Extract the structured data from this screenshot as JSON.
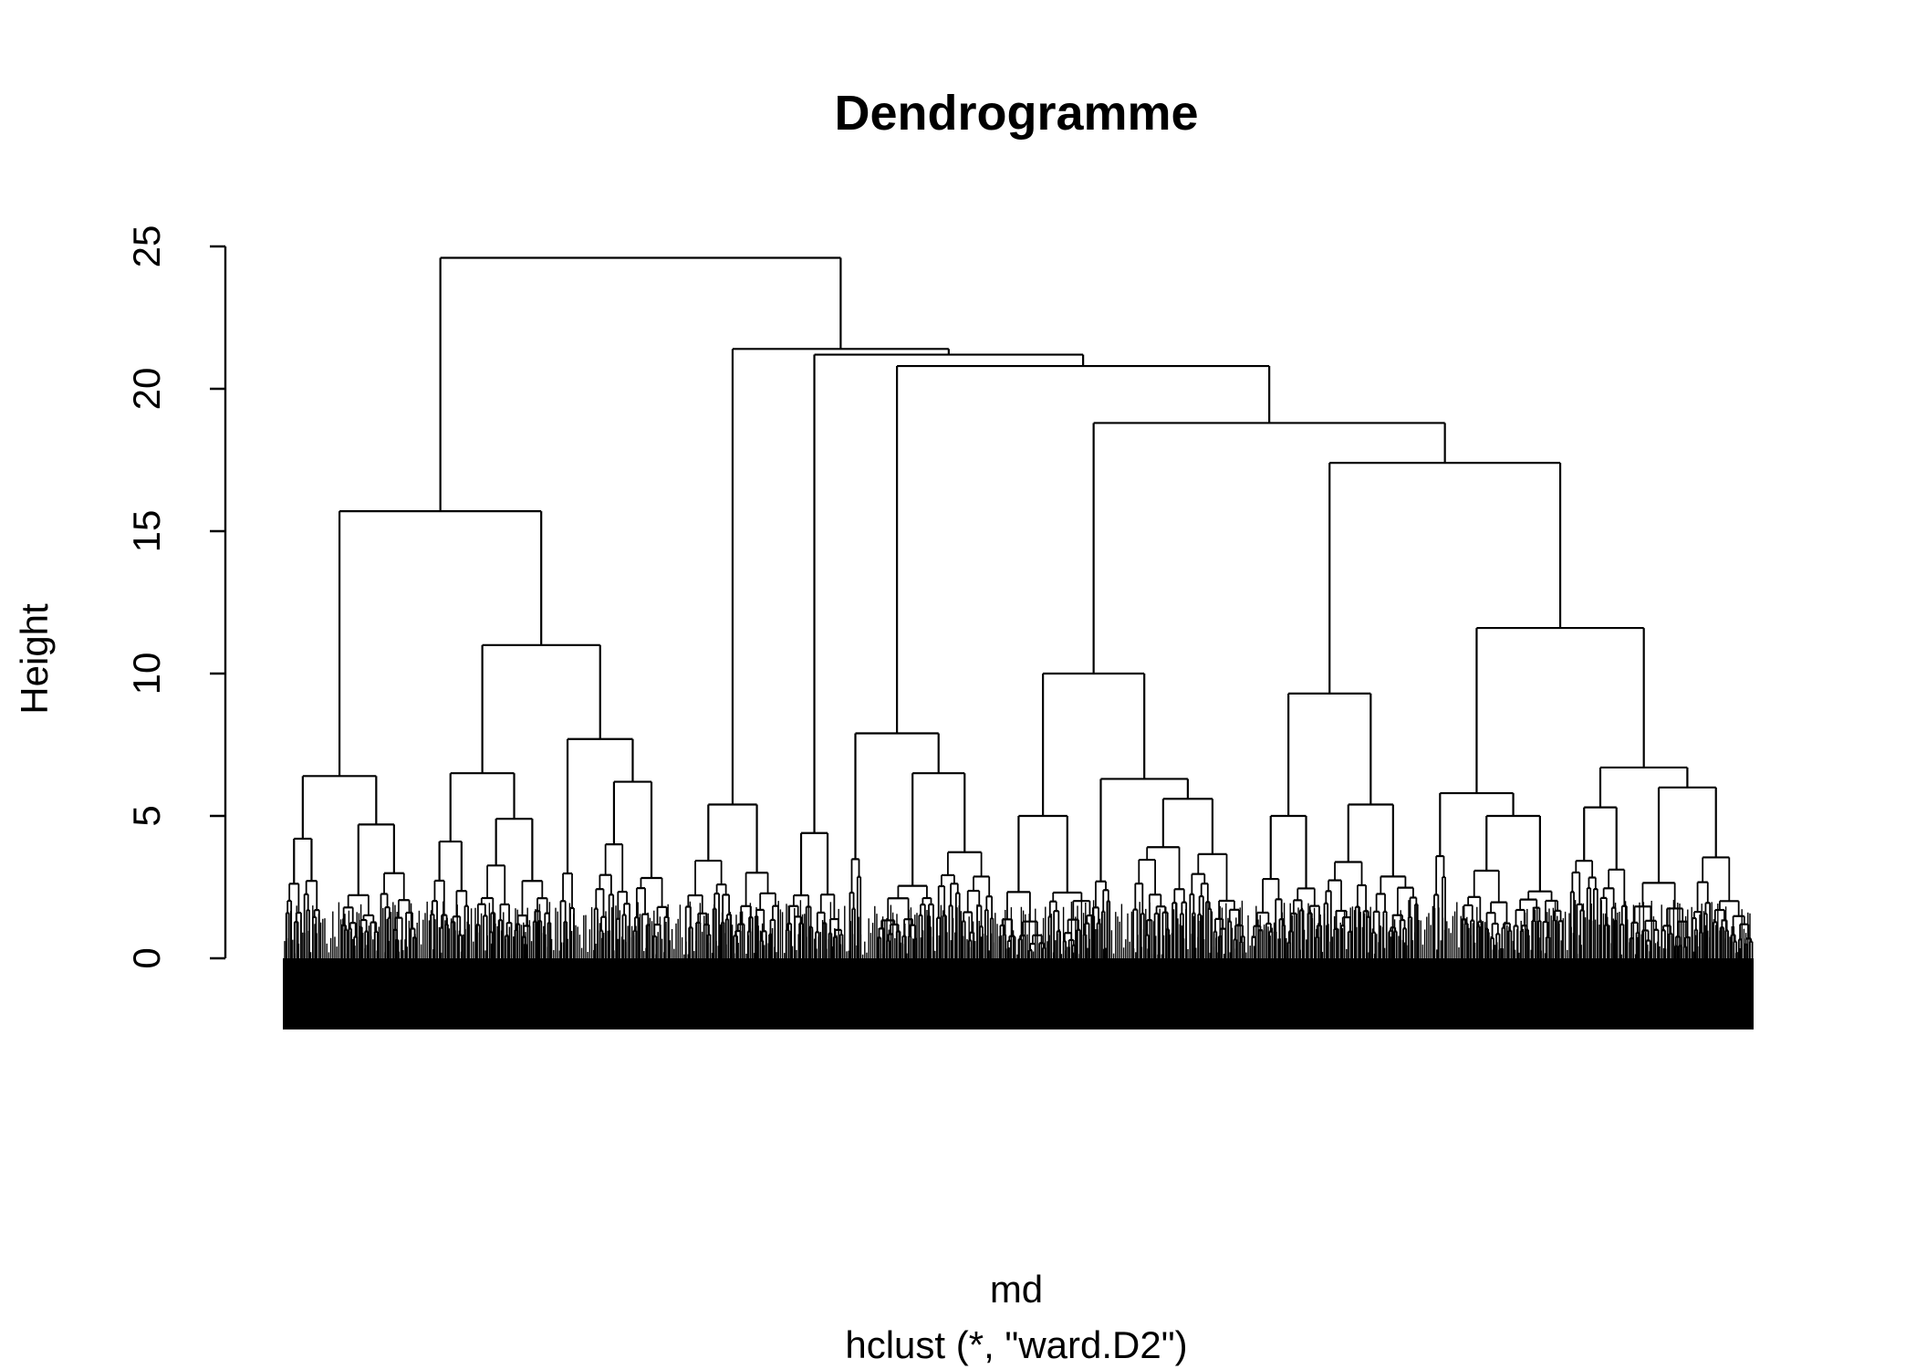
{
  "chart_data": {
    "type": "dendrogram",
    "title": "Dendrogramme",
    "xlabel": "md",
    "sub": "hclust (*, \"ward.D2\")",
    "ylabel": "Height",
    "ylim": [
      0,
      25
    ],
    "yticks": [
      0,
      5,
      10,
      15,
      20,
      25
    ],
    "ytick_labels": [
      "0",
      "5",
      "10",
      "15",
      "20",
      "25"
    ],
    "grid": false,
    "leaf_label_depth": 2.5,
    "top_merges": [
      {
        "id": "m_root",
        "height": 24.6,
        "children": [
          "m_a",
          "m_b"
        ]
      },
      {
        "id": "m_a",
        "height": 15.7,
        "children": [
          "m_a1",
          "m_a2"
        ]
      },
      {
        "id": "m_a1",
        "height": 6.4,
        "children": [
          "m_a1L",
          "m_a1R"
        ]
      },
      {
        "id": "m_a1L",
        "height": 4.2,
        "children": [
          "leaf",
          "leaf"
        ]
      },
      {
        "id": "m_a1R",
        "height": 4.7,
        "children": [
          "leaf",
          "leaf"
        ]
      },
      {
        "id": "m_a2",
        "height": 11.0,
        "children": [
          "m_a2L",
          "m_a2R"
        ]
      },
      {
        "id": "m_a2L",
        "height": 6.5,
        "children": [
          "m_a2La",
          "m_a2Lb"
        ]
      },
      {
        "id": "m_a2La",
        "height": 4.1,
        "children": [
          "leaf",
          "leaf"
        ]
      },
      {
        "id": "m_a2Lb",
        "height": 4.9,
        "children": [
          "leaf",
          "leaf"
        ]
      },
      {
        "id": "m_a2R",
        "height": 7.7,
        "children": [
          "leaf",
          "m_a2Rb"
        ]
      },
      {
        "id": "m_a2Rb",
        "height": 6.2,
        "children": [
          "leaf",
          "leaf"
        ]
      },
      {
        "id": "m_b",
        "height": 21.4,
        "children": [
          "m_b1",
          "m_b2"
        ]
      },
      {
        "id": "m_b1",
        "height": 5.4,
        "children": [
          "leaf",
          "leaf"
        ]
      },
      {
        "id": "m_b2",
        "height": 21.2,
        "children": [
          "m_b2a",
          "m_b2b"
        ]
      },
      {
        "id": "m_b2a",
        "height": 4.4,
        "children": [
          "leaf",
          "leaf"
        ]
      },
      {
        "id": "m_b2b",
        "height": 20.8,
        "children": [
          "m_c",
          "m_d"
        ]
      },
      {
        "id": "m_c",
        "height": 7.9,
        "children": [
          "leaf",
          "m_c2"
        ]
      },
      {
        "id": "m_c2",
        "height": 6.5,
        "children": [
          "leaf",
          "leaf"
        ]
      },
      {
        "id": "m_d",
        "height": 18.8,
        "children": [
          "m_d1",
          "m_d2"
        ]
      },
      {
        "id": "m_d1",
        "height": 10.0,
        "children": [
          "m_d1L",
          "m_d1R"
        ]
      },
      {
        "id": "m_d1L",
        "height": 5.0,
        "children": [
          "leaf",
          "leaf"
        ]
      },
      {
        "id": "m_d1R",
        "height": 6.3,
        "children": [
          "leaf",
          "m_d1Rb"
        ]
      },
      {
        "id": "m_d1Rb",
        "height": 5.6,
        "children": [
          "leaf",
          "leaf"
        ]
      },
      {
        "id": "m_d2",
        "height": 17.4,
        "children": [
          "m_e",
          "m_f"
        ]
      },
      {
        "id": "m_e",
        "height": 9.3,
        "children": [
          "m_e1",
          "m_e2"
        ]
      },
      {
        "id": "m_e1",
        "height": 5.0,
        "children": [
          "leaf",
          "leaf"
        ]
      },
      {
        "id": "m_e2",
        "height": 5.4,
        "children": [
          "leaf",
          "leaf"
        ]
      },
      {
        "id": "m_f",
        "height": 11.6,
        "children": [
          "m_f1",
          "m_f2"
        ]
      },
      {
        "id": "m_f1",
        "height": 5.8,
        "children": [
          "leaf",
          "m_f1b"
        ]
      },
      {
        "id": "m_f1b",
        "height": 5.0,
        "children": [
          "leaf",
          "leaf"
        ]
      },
      {
        "id": "m_f2",
        "height": 6.7,
        "children": [
          "m_f2a",
          "m_f2b"
        ]
      },
      {
        "id": "m_f2a",
        "height": 5.3,
        "children": [
          "leaf",
          "leaf"
        ]
      },
      {
        "id": "m_f2b",
        "height": 6.0,
        "children": [
          "leaf",
          "leaf"
        ]
      }
    ],
    "colors": {
      "line": "#000000",
      "background": "#ffffff"
    }
  }
}
